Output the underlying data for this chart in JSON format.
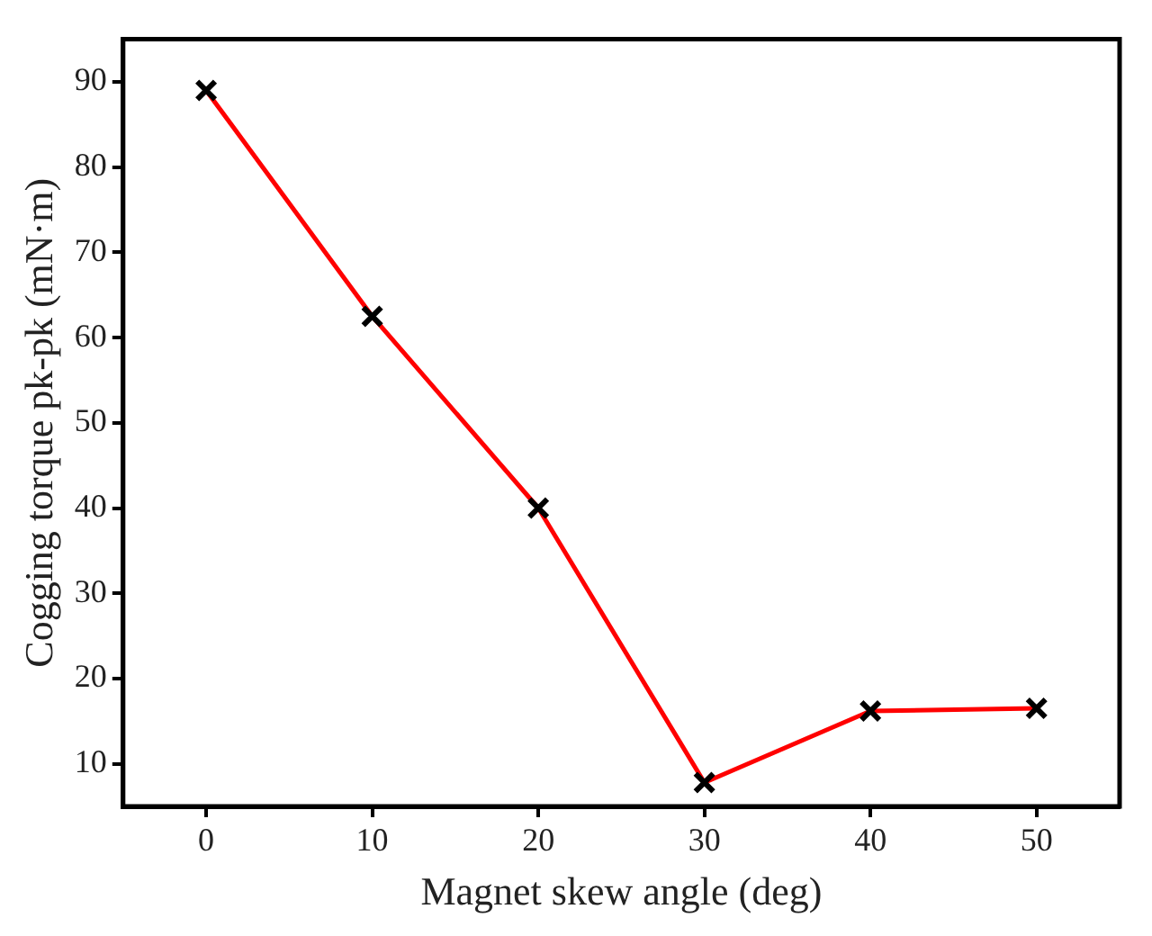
{
  "chart_data": {
    "type": "line",
    "xlabel": "Magnet skew angle (deg)",
    "ylabel": "Cogging torque pk-pk (mN·m)",
    "x": [
      0,
      10,
      20,
      30,
      40,
      50
    ],
    "series": [
      {
        "color": "#ff0000",
        "values": [
          89,
          62.5,
          40,
          7.8,
          16.2,
          16.5
        ]
      }
    ],
    "xlim": [
      -5,
      55
    ],
    "xticks": [
      0,
      10,
      20,
      30,
      40,
      50
    ],
    "ylim": [
      5,
      95
    ],
    "yticks": [
      10,
      20,
      30,
      40,
      50,
      60,
      70,
      80,
      90
    ],
    "grid": false,
    "legend": false,
    "marker": "cross",
    "line_style": "solid"
  }
}
